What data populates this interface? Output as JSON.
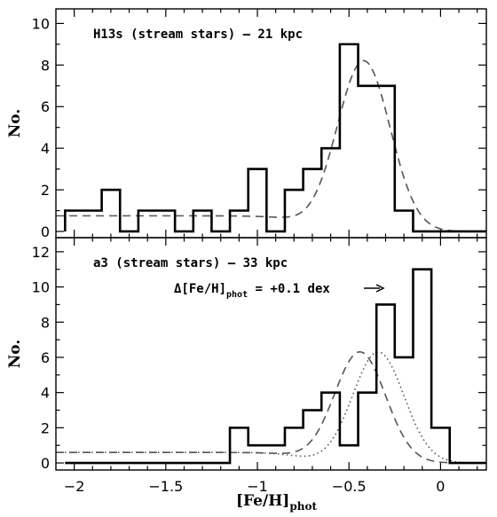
{
  "chart_data": [
    {
      "type": "histogram",
      "panel_label": "H13s (stream stars) – 21 kpc",
      "ylabel": "No.",
      "xlabel_main": "[Fe/H]",
      "xlabel_sub": "phot",
      "xlim": [
        -2.1,
        0.25
      ],
      "ylim": [
        -0.3,
        10.7
      ],
      "yticks": [
        0,
        2,
        4,
        6,
        8,
        10
      ],
      "xticks": [
        -2,
        -1.5,
        -1,
        -0.5,
        0
      ],
      "xtick_labels": [
        "−2",
        "−1.5",
        "−1",
        "−0.5",
        "0"
      ],
      "bin_edges": [
        -2.05,
        -1.95,
        -1.85,
        -1.75,
        -1.65,
        -1.55,
        -1.45,
        -1.35,
        -1.25,
        -1.15,
        -1.05,
        -0.95,
        -0.85,
        -0.75,
        -0.65,
        -0.55,
        -0.45,
        -0.35,
        -0.25,
        -0.15,
        -0.05,
        0.05,
        0.15,
        0.25
      ],
      "counts": [
        1,
        1,
        2,
        0,
        1,
        1,
        0,
        1,
        0,
        1,
        3,
        0,
        2,
        3,
        4,
        9,
        7,
        7,
        1,
        0,
        0,
        0,
        0
      ],
      "fits": [
        {
          "style": "dashed",
          "model": "gaussian+flat",
          "amplitude": 8.2,
          "mean": -0.42,
          "sigma": 0.145,
          "baseline": 0.75
        }
      ]
    },
    {
      "type": "histogram",
      "panel_label": "a3 (stream stars) – 33 kpc",
      "annotation": "Δ[Fe/H]phot = +0.1 dex →",
      "annotation_main": "Δ[Fe/H]",
      "annotation_sub": "phot",
      "annotation_rest": " = +0.1 dex",
      "ylabel": "No.",
      "xlabel_main": "[Fe/H]",
      "xlabel_sub": "phot",
      "xlim": [
        -2.1,
        0.25
      ],
      "ylim": [
        -0.4,
        12.8
      ],
      "yticks": [
        0,
        2,
        4,
        6,
        8,
        10,
        12
      ],
      "xticks": [
        -2,
        -1.5,
        -1,
        -0.5,
        0
      ],
      "xtick_labels": [
        "−2",
        "−1.5",
        "−1",
        "−0.5",
        "0"
      ],
      "bin_edges": [
        -2.05,
        -1.95,
        -1.85,
        -1.75,
        -1.65,
        -1.55,
        -1.45,
        -1.35,
        -1.25,
        -1.15,
        -1.05,
        -0.95,
        -0.85,
        -0.75,
        -0.65,
        -0.55,
        -0.45,
        -0.35,
        -0.25,
        -0.15,
        -0.05,
        0.05,
        0.15,
        0.25
      ],
      "counts": [
        0,
        0,
        0,
        0,
        0,
        0,
        0,
        0,
        0,
        2,
        1,
        1,
        2,
        3,
        4,
        1,
        4,
        9,
        6,
        11,
        2,
        0,
        0
      ],
      "fits": [
        {
          "style": "dashed",
          "model": "gaussian+flat",
          "amplitude": 6.3,
          "mean": -0.44,
          "sigma": 0.14,
          "baseline": 0.6
        },
        {
          "style": "dotted",
          "model": "gaussian+flat",
          "amplitude": 6.3,
          "mean": -0.34,
          "sigma": 0.14,
          "baseline": 0.6
        }
      ]
    }
  ]
}
